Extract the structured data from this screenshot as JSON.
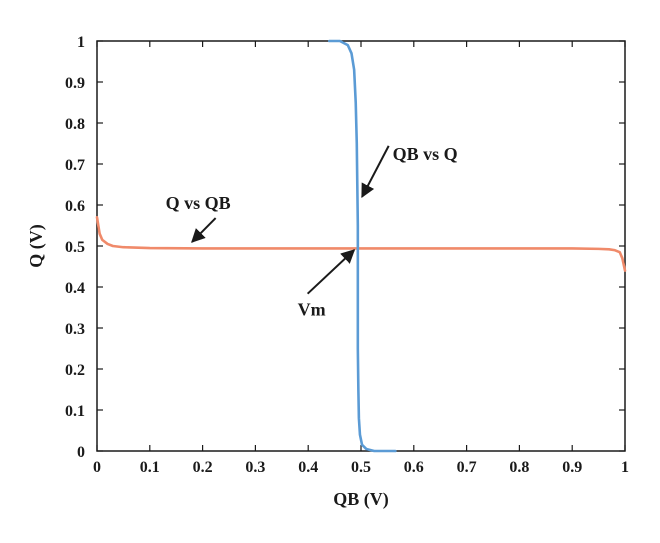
{
  "chart_data": {
    "type": "line",
    "xlabel": "QB (V)",
    "ylabel": "Q (V)",
    "xlim": [
      0,
      1
    ],
    "ylim": [
      0,
      1
    ],
    "xticks": [
      "0",
      "0.1",
      "0.2",
      "0.3",
      "0.4",
      "0.5",
      "0.6",
      "0.7",
      "0.8",
      "0.9",
      "1"
    ],
    "yticks": [
      "0",
      "0.1",
      "0.2",
      "0.3",
      "0.4",
      "0.5",
      "0.6",
      "0.7",
      "0.8",
      "0.9",
      "1"
    ],
    "grid": false,
    "series": [
      {
        "name": "Q vs QB",
        "color": "#f08a6a",
        "x": [
          0,
          0.005,
          0.01,
          0.02,
          0.03,
          0.05,
          0.1,
          0.2,
          0.3,
          0.4,
          0.5,
          0.6,
          0.7,
          0.8,
          0.9,
          0.95,
          0.97,
          0.98,
          0.99,
          0.995,
          1
        ],
        "y": [
          0.57,
          0.53,
          0.515,
          0.505,
          0.5,
          0.497,
          0.495,
          0.494,
          0.494,
          0.494,
          0.494,
          0.494,
          0.494,
          0.494,
          0.494,
          0.493,
          0.492,
          0.49,
          0.485,
          0.47,
          0.44
        ]
      },
      {
        "name": "QB vs Q",
        "color": "#5b9bd5",
        "x": [
          0.44,
          0.46,
          0.475,
          0.482,
          0.487,
          0.49,
          0.492,
          0.493,
          0.494,
          0.494,
          0.494,
          0.494,
          0.495,
          0.496,
          0.498,
          0.502,
          0.51,
          0.525,
          0.545,
          0.565
        ],
        "y": [
          1.0,
          1.0,
          0.99,
          0.97,
          0.93,
          0.85,
          0.75,
          0.65,
          0.55,
          0.45,
          0.35,
          0.25,
          0.15,
          0.08,
          0.04,
          0.015,
          0.005,
          0.0,
          0.0,
          0.0
        ]
      }
    ],
    "annotations": [
      {
        "text": "Q vs QB",
        "x": 0.13,
        "y": 0.59,
        "arrow_to": [
          0.18,
          0.51
        ]
      },
      {
        "text": "QB vs Q",
        "x": 0.56,
        "y": 0.71,
        "arrow_to": [
          0.502,
          0.62
        ]
      },
      {
        "text": "Vm",
        "x": 0.38,
        "y": 0.33,
        "arrow_to": [
          0.487,
          0.49
        ]
      }
    ]
  }
}
